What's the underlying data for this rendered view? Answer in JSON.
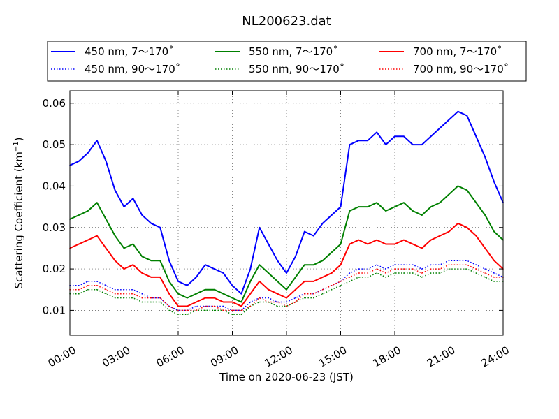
{
  "chart_data": {
    "type": "line",
    "title": "NL200623.dat",
    "xlabel": "Time on 2020-06-23 (JST)",
    "ylabel_main": "Scattering Coefficient (km",
    "ylabel_sup": "−1",
    "ylabel_close": ")",
    "x_unit": "hours",
    "xlim": [
      0,
      24
    ],
    "ylim": [
      0.004,
      0.063
    ],
    "x_ticks": [
      0,
      3,
      6,
      9,
      12,
      15,
      18,
      21,
      24
    ],
    "x_tick_labels": [
      "00:00",
      "03:00",
      "06:00",
      "09:00",
      "12:00",
      "15:00",
      "18:00",
      "21:00",
      "24:00"
    ],
    "y_ticks": [
      0.01,
      0.02,
      0.03,
      0.04,
      0.05,
      0.06
    ],
    "y_tick_labels": [
      "0.01",
      "0.02",
      "0.03",
      "0.04",
      "0.05",
      "0.06"
    ],
    "grid": true,
    "legend_placement": "top, outside plot, 3 columns",
    "x": [
      0,
      0.5,
      1,
      1.5,
      2,
      2.5,
      3,
      3.5,
      4,
      4.5,
      5,
      5.5,
      6,
      6.5,
      7,
      7.5,
      8,
      8.5,
      9,
      9.5,
      10,
      10.5,
      11,
      11.5,
      12,
      12.5,
      13,
      13.5,
      14,
      14.5,
      15,
      15.5,
      16,
      16.5,
      17,
      17.5,
      18,
      18.5,
      19,
      19.5,
      20,
      20.5,
      21,
      21.5,
      22,
      22.5,
      23,
      23.5,
      24
    ],
    "series": [
      {
        "name": "450 nm, 7～170˚",
        "color": "#0000ff",
        "style": "solid",
        "values": [
          0.045,
          0.046,
          0.048,
          0.051,
          0.046,
          0.039,
          0.035,
          0.037,
          0.033,
          0.031,
          0.03,
          0.022,
          0.017,
          0.016,
          0.018,
          0.021,
          0.02,
          0.019,
          0.016,
          0.014,
          0.02,
          0.03,
          0.026,
          0.022,
          0.019,
          0.023,
          0.029,
          0.028,
          0.031,
          0.033,
          0.035,
          0.05,
          0.051,
          0.051,
          0.053,
          0.05,
          0.052,
          0.052,
          0.05,
          0.05,
          0.052,
          0.054,
          0.056,
          0.058,
          0.057,
          0.052,
          0.047,
          0.041,
          0.036
        ]
      },
      {
        "name": "550 nm, 7～170˚",
        "color": "#008000",
        "style": "solid",
        "values": [
          0.032,
          0.033,
          0.034,
          0.036,
          0.032,
          0.028,
          0.025,
          0.026,
          0.023,
          0.022,
          0.022,
          0.017,
          0.014,
          0.013,
          0.014,
          0.015,
          0.015,
          0.014,
          0.013,
          0.012,
          0.017,
          0.021,
          0.019,
          0.017,
          0.015,
          0.018,
          0.021,
          0.021,
          0.022,
          0.024,
          0.026,
          0.034,
          0.035,
          0.035,
          0.036,
          0.034,
          0.035,
          0.036,
          0.034,
          0.033,
          0.035,
          0.036,
          0.038,
          0.04,
          0.039,
          0.036,
          0.033,
          0.029,
          0.027
        ]
      },
      {
        "name": "700 nm, 7～170˚",
        "color": "#ff0000",
        "style": "solid",
        "values": [
          0.025,
          0.026,
          0.027,
          0.028,
          0.025,
          0.022,
          0.02,
          0.021,
          0.019,
          0.018,
          0.018,
          0.014,
          0.011,
          0.011,
          0.012,
          0.013,
          0.013,
          0.012,
          0.012,
          0.011,
          0.014,
          0.017,
          0.015,
          0.014,
          0.013,
          0.015,
          0.017,
          0.017,
          0.018,
          0.019,
          0.021,
          0.026,
          0.027,
          0.026,
          0.027,
          0.026,
          0.026,
          0.027,
          0.026,
          0.025,
          0.027,
          0.028,
          0.029,
          0.031,
          0.03,
          0.028,
          0.025,
          0.022,
          0.02
        ]
      },
      {
        "name": "450 nm, 90～170˚",
        "color": "#0000ff",
        "style": "dotted",
        "values": [
          0.016,
          0.016,
          0.017,
          0.017,
          0.016,
          0.015,
          0.015,
          0.015,
          0.014,
          0.013,
          0.013,
          0.011,
          0.01,
          0.01,
          0.011,
          0.011,
          0.011,
          0.011,
          0.01,
          0.01,
          0.012,
          0.013,
          0.013,
          0.012,
          0.012,
          0.013,
          0.014,
          0.014,
          0.015,
          0.016,
          0.017,
          0.019,
          0.02,
          0.02,
          0.021,
          0.02,
          0.021,
          0.021,
          0.021,
          0.02,
          0.021,
          0.021,
          0.022,
          0.022,
          0.022,
          0.021,
          0.02,
          0.019,
          0.018
        ]
      },
      {
        "name": "550 nm, 90～170˚",
        "color": "#008000",
        "style": "dotted",
        "values": [
          0.014,
          0.014,
          0.015,
          0.015,
          0.014,
          0.013,
          0.013,
          0.013,
          0.012,
          0.012,
          0.012,
          0.01,
          0.009,
          0.009,
          0.01,
          0.01,
          0.01,
          0.01,
          0.009,
          0.009,
          0.011,
          0.012,
          0.012,
          0.011,
          0.011,
          0.012,
          0.013,
          0.013,
          0.014,
          0.015,
          0.016,
          0.017,
          0.018,
          0.018,
          0.019,
          0.018,
          0.019,
          0.019,
          0.019,
          0.018,
          0.019,
          0.019,
          0.02,
          0.02,
          0.02,
          0.019,
          0.018,
          0.017,
          0.017
        ]
      },
      {
        "name": "700 nm, 90～170˚",
        "color": "#ff0000",
        "style": "dotted",
        "values": [
          0.015,
          0.015,
          0.016,
          0.016,
          0.015,
          0.014,
          0.014,
          0.014,
          0.013,
          0.013,
          0.013,
          0.011,
          0.01,
          0.01,
          0.01,
          0.011,
          0.011,
          0.01,
          0.01,
          0.01,
          0.011,
          0.013,
          0.012,
          0.012,
          0.011,
          0.012,
          0.014,
          0.014,
          0.015,
          0.016,
          0.017,
          0.018,
          0.019,
          0.019,
          0.02,
          0.019,
          0.02,
          0.02,
          0.02,
          0.019,
          0.02,
          0.02,
          0.021,
          0.021,
          0.021,
          0.02,
          0.019,
          0.018,
          0.018
        ]
      }
    ]
  }
}
